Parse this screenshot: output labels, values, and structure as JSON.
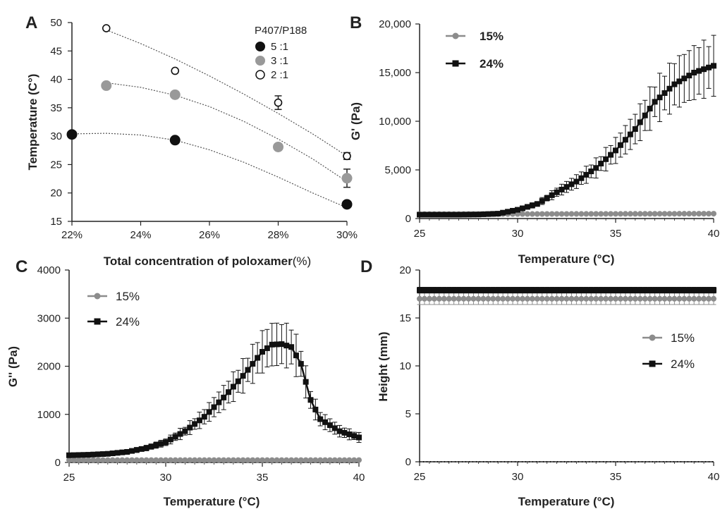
{
  "chart_data": [
    {
      "panel": "A",
      "type": "scatter",
      "xlabel_main": "Total concentration of poloxamer",
      "xlabel_suffix": "(%)",
      "ylabel": "Temperature (C°)",
      "x_ticks": [
        "22%",
        "24%",
        "26%",
        "28%",
        "30%"
      ],
      "y_ticks": [
        "15",
        "20",
        "25",
        "30",
        "35",
        "40",
        "45",
        "50"
      ],
      "xlim": [
        22,
        30
      ],
      "ylim": [
        15,
        50
      ],
      "legend_title": "P407/P188",
      "legend_placement": "top-right",
      "series": [
        {
          "name": "5 :1",
          "color": "#111111",
          "marker": "filled-circle",
          "points": [
            [
              22,
              30.3
            ],
            [
              25,
              29.3
            ],
            [
              30,
              18.0
            ]
          ],
          "err": [
            0,
            0,
            0
          ],
          "trend": [
            [
              22,
              30.4
            ],
            [
              23,
              30.5
            ],
            [
              24,
              30.2
            ],
            [
              25,
              29.3
            ],
            [
              26,
              27.6
            ],
            [
              27,
              25.4
            ],
            [
              28,
              22.8
            ],
            [
              29,
              20.0
            ],
            [
              30,
              17.4
            ]
          ]
        },
        {
          "name": "3 :1",
          "color": "#999999",
          "marker": "filled-circle",
          "points": [
            [
              23,
              38.9
            ],
            [
              25,
              37.3
            ],
            [
              28,
              28.1
            ],
            [
              30,
              22.6
            ]
          ],
          "err": [
            0,
            0,
            0,
            1.6
          ],
          "trend": [
            [
              23,
              39.4
            ],
            [
              24,
              38.6
            ],
            [
              25,
              37.2
            ],
            [
              26,
              35.2
            ],
            [
              27,
              32.6
            ],
            [
              28,
              29.5
            ],
            [
              29,
              26.0
            ],
            [
              30,
              22.0
            ]
          ]
        },
        {
          "name": "2 :1",
          "color": "#ffffff",
          "marker": "open-circle",
          "points": [
            [
              23,
              49.0
            ],
            [
              25,
              41.5
            ],
            [
              28,
              35.9
            ],
            [
              30,
              26.5
            ]
          ],
          "err": [
            0,
            0,
            1.2,
            0.6
          ],
          "trend": [
            [
              23,
              48.7
            ],
            [
              24,
              46.3
            ],
            [
              25,
              43.6
            ],
            [
              26,
              40.6
            ],
            [
              27,
              37.4
            ],
            [
              28,
              34.0
            ],
            [
              29,
              30.4
            ],
            [
              30,
              26.5
            ]
          ]
        }
      ]
    },
    {
      "panel": "B",
      "type": "line",
      "xlabel": "Temperature (°C)",
      "ylabel": "G' (Pa)",
      "x_ticks": [
        "25",
        "30",
        "35",
        "40"
      ],
      "y_ticks": [
        "0",
        "5,000",
        "10,000",
        "15,000",
        "20,000"
      ],
      "xlim": [
        25,
        40
      ],
      "ylim": [
        0,
        20000
      ],
      "legend_placement": "top-left",
      "series": [
        {
          "name": "15%",
          "color": "#8c8c8c",
          "marker": "circle",
          "x": [
            25,
            40
          ],
          "y": [
            450,
            500
          ],
          "err_scale": 0
        },
        {
          "name": "24%",
          "color": "#111111",
          "marker": "square",
          "x": [
            25,
            26,
            27,
            28,
            29,
            30,
            31,
            32,
            33,
            34,
            35,
            36,
            37,
            38,
            39,
            40
          ],
          "y": [
            400,
            400,
            400,
            420,
            500,
            900,
            1500,
            2700,
            3800,
            5200,
            7000,
            9200,
            12000,
            13800,
            15000,
            15700
          ],
          "err_scale": 0.2
        }
      ]
    },
    {
      "panel": "C",
      "type": "line",
      "xlabel": "Temperature (°C)",
      "ylabel": "G'' (Pa)",
      "x_ticks": [
        "25",
        "30",
        "35",
        "40"
      ],
      "y_ticks": [
        "0",
        "1000",
        "2000",
        "3000",
        "4000"
      ],
      "xlim": [
        25,
        40
      ],
      "ylim": [
        0,
        4000
      ],
      "legend_placement": "top-left",
      "series": [
        {
          "name": "15%",
          "color": "#8c8c8c",
          "marker": "circle",
          "x": [
            25,
            40
          ],
          "y": [
            50,
            50
          ],
          "err_scale": 0
        },
        {
          "name": "24%",
          "color": "#111111",
          "marker": "square",
          "x": [
            25,
            26,
            27,
            28,
            29,
            30,
            31,
            32,
            33,
            34,
            35,
            35.5,
            36,
            36.5,
            37,
            37.5,
            38,
            39,
            40
          ],
          "y": [
            150,
            160,
            180,
            220,
            300,
            420,
            650,
            950,
            1350,
            1800,
            2300,
            2450,
            2460,
            2400,
            2050,
            1300,
            900,
            650,
            520
          ],
          "err_scale": 0.2
        }
      ]
    },
    {
      "panel": "D",
      "type": "line",
      "xlabel": "Temperature (°C)",
      "ylabel": "Height (mm)",
      "x_ticks": [
        "25",
        "30",
        "35",
        "40"
      ],
      "y_ticks": [
        "0",
        "5",
        "10",
        "15",
        "20"
      ],
      "xlim": [
        25,
        40
      ],
      "ylim": [
        0,
        20
      ],
      "legend_placement": "middle-right",
      "series": [
        {
          "name": "15%",
          "color": "#8c8c8c",
          "marker": "circle",
          "x": [
            25,
            40
          ],
          "y": [
            17.0,
            17.0
          ],
          "err_abs": 0.6
        },
        {
          "name": "24%",
          "color": "#111111",
          "marker": "square",
          "x": [
            25,
            40
          ],
          "y": [
            17.9,
            17.9
          ],
          "err_abs": 0.3
        }
      ]
    }
  ]
}
